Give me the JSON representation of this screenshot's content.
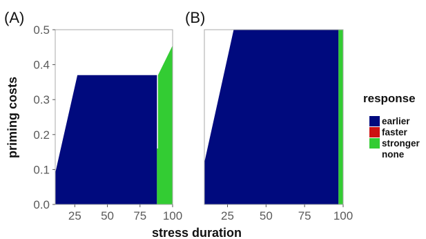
{
  "chart_data": [
    {
      "type": "area",
      "panel_label": "(A)",
      "xlabel": "stress duration",
      "ylabel": "priming costs",
      "xlim": [
        10,
        100
      ],
      "ylim": [
        0,
        0.5
      ],
      "x_ticks": [
        "25",
        "50",
        "75",
        "100"
      ],
      "y_ticks": [
        "0.0",
        "0.1",
        "0.2",
        "0.3",
        "0.4",
        "0.5"
      ],
      "regions": [
        {
          "response": "earlier",
          "color": "#000a7e",
          "polygon": [
            [
              10,
              0
            ],
            [
              10,
              0.09
            ],
            [
              27,
              0.37
            ],
            [
              88,
              0.37
            ],
            [
              88,
              0
            ]
          ]
        },
        {
          "response": "stronger",
          "color": "#33cc33",
          "polygon": [
            [
              88,
              0
            ],
            [
              88,
              0.16
            ],
            [
              88.8,
              0.16
            ],
            [
              88.8,
              0.37
            ],
            [
              100,
              0.455
            ],
            [
              100,
              0
            ]
          ]
        }
      ]
    },
    {
      "type": "area",
      "panel_label": "(B)",
      "xlabel": "stress duration",
      "ylabel": "priming costs",
      "xlim": [
        10,
        100
      ],
      "ylim": [
        0,
        0.5
      ],
      "x_ticks": [
        "25",
        "50",
        "75",
        "100"
      ],
      "y_ticks": [
        "0.0",
        "0.1",
        "0.2",
        "0.3",
        "0.4",
        "0.5"
      ],
      "regions": [
        {
          "response": "earlier",
          "color": "#000a7e",
          "polygon": [
            [
              10,
              0
            ],
            [
              10,
              0.12
            ],
            [
              29,
              0.5
            ],
            [
              97,
              0.5
            ],
            [
              97,
              0
            ]
          ]
        },
        {
          "response": "stronger",
          "color": "#33cc33",
          "polygon": [
            [
              97,
              0
            ],
            [
              97,
              0.5
            ],
            [
              100,
              0.5
            ],
            [
              100,
              0
            ]
          ]
        }
      ]
    }
  ],
  "shared_xlabel": "stress duration",
  "shared_ylabel": "priming costs",
  "legend": {
    "title": "response",
    "items": [
      {
        "label": "earlier",
        "color": "#000a7e"
      },
      {
        "label": "faster",
        "color": "#cc1111"
      },
      {
        "label": "stronger",
        "color": "#33cc33"
      },
      {
        "label": "none",
        "color": "#ffffff"
      }
    ]
  }
}
